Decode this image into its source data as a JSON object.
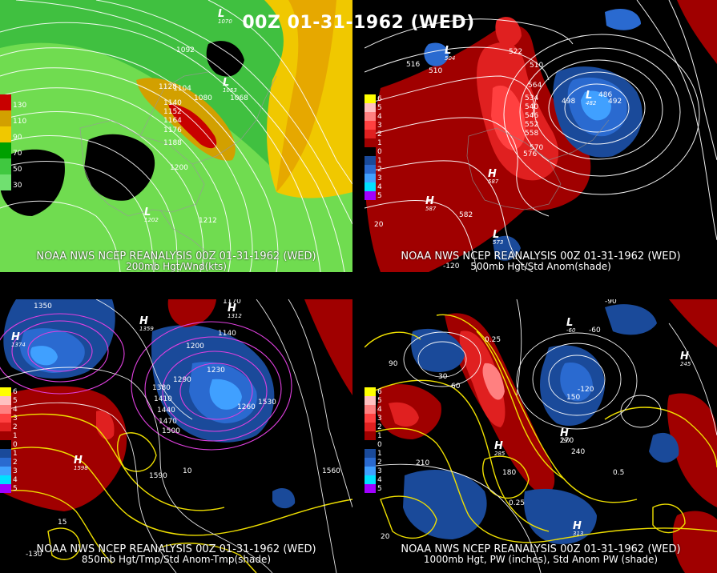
{
  "header": {
    "title": "00Z 01-31-1962 (WED)"
  },
  "panels": {
    "p1": {
      "caption1": "NOAA NWS NCEP REANALYSIS 00Z 01-31-1962 (WED)",
      "caption2": "200mb Hgt/Wnd(kts)",
      "legend": [
        {
          "label": "130",
          "color": "#c80000"
        },
        {
          "label": "110",
          "color": "#d2a000"
        },
        {
          "label": "90",
          "color": "#f0c800"
        },
        {
          "label": "70",
          "color": "#00a000"
        },
        {
          "label": "50",
          "color": "#40c840"
        },
        {
          "label": "30",
          "color": "#70e070"
        }
      ],
      "contour_labels": [
        "1092",
        "1080",
        "1068",
        "1128",
        "1140",
        "1152",
        "1164",
        "1176",
        "1188",
        "1200",
        "1212",
        "1104"
      ],
      "centers": [
        {
          "kind": "L",
          "value": "1070"
        },
        {
          "kind": "L",
          "value": "1053"
        },
        {
          "kind": "L",
          "value": "1202"
        }
      ]
    },
    "p2": {
      "caption1": "NOAA NWS NCEP REANALYSIS 00Z 01-31-1962 (WED)",
      "caption2": "500mb Hgt/Std Anom(shade)",
      "legend": [
        {
          "label": "6",
          "color": "#ffff00"
        },
        {
          "label": "5",
          "color": "#ffc0c0"
        },
        {
          "label": "4",
          "color": "#ff8080"
        },
        {
          "label": "3",
          "color": "#ff4040"
        },
        {
          "label": "2",
          "color": "#e02020"
        },
        {
          "label": "1",
          "color": "#a00000"
        },
        {
          "label": "0",
          "color": "#000000"
        },
        {
          "label": "1",
          "color": "#1a4a9a"
        },
        {
          "label": "2",
          "color": "#2a6ad0"
        },
        {
          "label": "3",
          "color": "#40a0ff"
        },
        {
          "label": "4",
          "color": "#00e0ff"
        },
        {
          "label": "5",
          "color": "#a000ff"
        }
      ],
      "contour_labels": [
        "516",
        "510",
        "522",
        "510",
        "534",
        "540",
        "546",
        "552",
        "558",
        "564",
        "570",
        "576",
        "582",
        "498",
        "486",
        "492",
        "20",
        "-120"
      ],
      "centers": [
        {
          "kind": "L",
          "value": "504"
        },
        {
          "kind": "L",
          "value": "482"
        },
        {
          "kind": "H",
          "value": "587"
        },
        {
          "kind": "H",
          "value": "587"
        },
        {
          "kind": "L",
          "value": "573"
        }
      ]
    },
    "p3": {
      "caption1": "NOAA NWS NCEP REANALYSIS 00Z 01-31-1962 (WED)",
      "caption2": "850mb Hgt/Tmp/Std Anom-Tmp(shade)",
      "contour_labels": [
        "1350",
        "1170",
        "1140",
        "1230",
        "1200",
        "1260",
        "1290",
        "1380",
        "1410",
        "1440",
        "1470",
        "1500",
        "1530",
        "1560",
        "1590",
        "10",
        "15",
        "-130"
      ],
      "centers": [
        {
          "kind": "H",
          "value": "1374"
        },
        {
          "kind": "H",
          "value": "1359"
        },
        {
          "kind": "H",
          "value": "1312"
        },
        {
          "kind": "H",
          "value": "1598"
        }
      ]
    },
    "p4": {
      "caption1": "NOAA NWS NCEP REANALYSIS 00Z 01-31-1962 (WED)",
      "caption2": "1000mb Hgt, PW (inches), Std Anom PW (shade)",
      "contour_labels": [
        "90",
        "-60",
        "-90",
        "-120",
        "30",
        "60",
        "150",
        "180",
        "210",
        "240",
        "270",
        "0.25",
        "0.5",
        "0.25",
        "20"
      ],
      "centers": [
        {
          "kind": "H",
          "value": "285"
        },
        {
          "kind": "H",
          "value": "297"
        },
        {
          "kind": "H",
          "value": "313"
        },
        {
          "kind": "L",
          "value": "-60"
        },
        {
          "kind": "H",
          "value": "245"
        }
      ]
    }
  }
}
